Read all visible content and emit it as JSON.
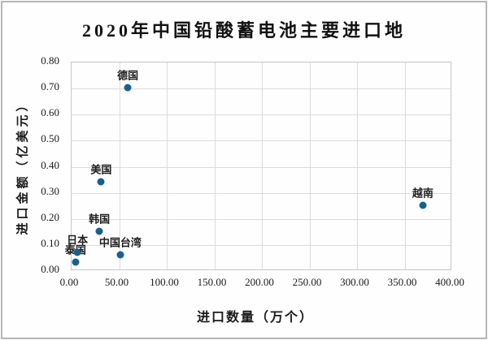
{
  "title": "2020年中国铅酸蓄电池主要进口地",
  "chart_data": {
    "type": "scatter",
    "title": "2020年中国铅酸蓄电池主要进口地",
    "xlabel": "进口数量（万个）",
    "ylabel": "进口金额（亿美元）",
    "xlim": [
      0,
      400
    ],
    "ylim": [
      0,
      0.8
    ],
    "grid": true,
    "legend": false,
    "marker_color": "#17618f",
    "grid_color": "#dcdcdc",
    "x_ticks": [
      {
        "value": 0,
        "label": "0.00"
      },
      {
        "value": 50,
        "label": "50.00"
      },
      {
        "value": 100,
        "label": "100.00"
      },
      {
        "value": 150,
        "label": "150.00"
      },
      {
        "value": 200,
        "label": "200.00"
      },
      {
        "value": 250,
        "label": "250.00"
      },
      {
        "value": 300,
        "label": "300.00"
      },
      {
        "value": 350,
        "label": "350.00"
      },
      {
        "value": 400,
        "label": "400.00"
      }
    ],
    "y_ticks": [
      {
        "value": 0.0,
        "label": "0.00"
      },
      {
        "value": 0.1,
        "label": "0.10"
      },
      {
        "value": 0.2,
        "label": "0.20"
      },
      {
        "value": 0.3,
        "label": "0.30"
      },
      {
        "value": 0.4,
        "label": "0.40"
      },
      {
        "value": 0.5,
        "label": "0.50"
      },
      {
        "value": 0.6,
        "label": "0.60"
      },
      {
        "value": 0.7,
        "label": "0.70"
      },
      {
        "value": 0.8,
        "label": "0.80"
      }
    ],
    "points": [
      {
        "label": "泰国",
        "x": 5,
        "y": 0.03
      },
      {
        "label": "日本",
        "x": 7,
        "y": 0.07
      },
      {
        "label": "韩国",
        "x": 30,
        "y": 0.15
      },
      {
        "label": "美国",
        "x": 32,
        "y": 0.34
      },
      {
        "label": "中国台湾",
        "x": 52,
        "y": 0.06
      },
      {
        "label": "德国",
        "x": 60,
        "y": 0.7
      },
      {
        "label": "越南",
        "x": 370,
        "y": 0.25
      }
    ]
  }
}
